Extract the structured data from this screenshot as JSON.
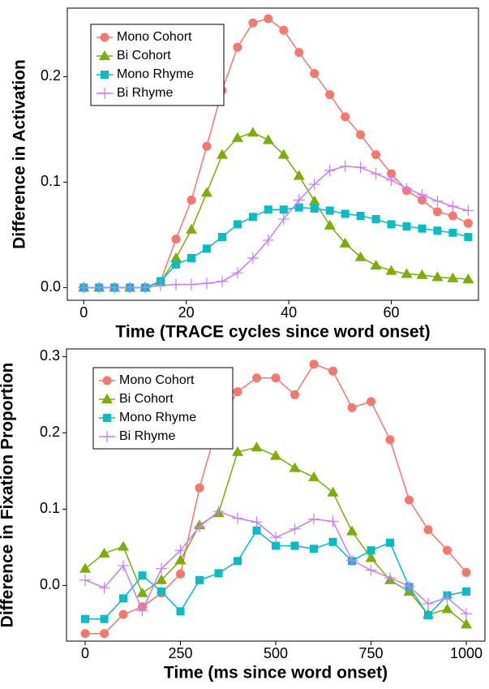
{
  "chart_data": [
    {
      "type": "line",
      "xlabel": "Time (TRACE cycles since word onset)",
      "ylabel": "Difference in Activation",
      "x": [
        0,
        3,
        6,
        9,
        12,
        15,
        18,
        21,
        24,
        27,
        30,
        33,
        36,
        39,
        42,
        45,
        48,
        51,
        54,
        57,
        60,
        63,
        66,
        69,
        72,
        75
      ],
      "xlim": [
        -3.2,
        77
      ],
      "xticks": [
        0,
        20,
        40,
        60
      ],
      "ylim": [
        -0.012,
        0.265
      ],
      "yticks": [
        {
          "value": 0,
          "label": "0.0"
        },
        0.1,
        0.2
      ],
      "legend": "top-left",
      "series": [
        {
          "name": "Mono Cohort",
          "color": "#F8766D",
          "marker": "circle",
          "values": [
            0,
            0,
            0,
            0,
            0,
            0.006,
            0.046,
            0.083,
            0.134,
            0.187,
            0.228,
            0.251,
            0.255,
            0.244,
            0.223,
            0.203,
            0.183,
            0.162,
            0.145,
            0.126,
            0.108,
            0.092,
            0.083,
            0.072,
            0.068,
            0.061
          ]
        },
        {
          "name": "Bi Cohort",
          "color": "#7CAE00",
          "marker": "triangle",
          "values": [
            0,
            0,
            0,
            0,
            0,
            0.005,
            0.028,
            0.055,
            0.09,
            0.126,
            0.142,
            0.147,
            0.14,
            0.126,
            0.106,
            0.082,
            0.059,
            0.042,
            0.029,
            0.021,
            0.016,
            0.013,
            0.012,
            0.01,
            0.009,
            0.008
          ]
        },
        {
          "name": "Mono Rhyme",
          "color": "#00BFC4",
          "marker": "square",
          "values": [
            0,
            0,
            0,
            0,
            0,
            0.006,
            0.022,
            0.028,
            0.037,
            0.048,
            0.06,
            0.067,
            0.074,
            0.074,
            0.076,
            0.075,
            0.073,
            0.07,
            0.068,
            0.065,
            0.06,
            0.058,
            0.056,
            0.054,
            0.052,
            0.048
          ]
        },
        {
          "name": "Bi Rhyme",
          "color": "#C77CFF",
          "marker": "plus",
          "values": [
            0,
            0,
            0,
            0,
            0,
            0.002,
            0.003,
            0.003,
            0.004,
            0.006,
            0.014,
            0.028,
            0.045,
            0.065,
            0.083,
            0.098,
            0.111,
            0.115,
            0.114,
            0.108,
            0.102,
            0.094,
            0.088,
            0.082,
            0.077,
            0.073
          ]
        }
      ]
    },
    {
      "type": "line",
      "xlabel": "Time (ms since word onset)",
      "ylabel": "Difference in Fixation Proportion",
      "x": [
        0,
        50,
        100,
        150,
        200,
        250,
        300,
        350,
        400,
        450,
        500,
        550,
        600,
        650,
        700,
        750,
        800,
        850,
        900,
        950,
        1000
      ],
      "xlim": [
        -49,
        1049
      ],
      "xticks": [
        0,
        250,
        500,
        750,
        1000
      ],
      "ylim": [
        -0.073,
        0.31
      ],
      "yticks": [
        {
          "value": 0,
          "label": "0.0"
        },
        0.1,
        0.2,
        0.3
      ],
      "legend": "top-left",
      "series": [
        {
          "name": "Mono Cohort",
          "color": "#F8766D",
          "marker": "circle",
          "values": [
            -0.063,
            -0.063,
            -0.038,
            -0.028,
            -0.01,
            0.015,
            0.128,
            0.215,
            0.254,
            0.272,
            0.272,
            0.25,
            0.29,
            0.281,
            0.233,
            0.241,
            0.191,
            0.112,
            0.073,
            0.046,
            0.017
          ]
        },
        {
          "name": "Bi Cohort",
          "color": "#7CAE00",
          "marker": "triangle",
          "values": [
            0.022,
            0.042,
            0.051,
            -0.01,
            0.007,
            0.033,
            0.079,
            0.095,
            0.175,
            0.181,
            0.17,
            0.154,
            0.142,
            0.122,
            0.071,
            0.036,
            0.007,
            -0.008,
            -0.038,
            -0.031,
            -0.051
          ]
        },
        {
          "name": "Mono Rhyme",
          "color": "#00BFC4",
          "marker": "square",
          "values": [
            -0.044,
            -0.044,
            -0.017,
            0.013,
            -0.008,
            -0.034,
            0.007,
            0.016,
            0.032,
            0.072,
            0.052,
            0.052,
            0.048,
            0.057,
            0.032,
            0.046,
            0.056,
            -0.002,
            -0.039,
            -0.013,
            -0.008
          ]
        },
        {
          "name": "Bi Rhyme",
          "color": "#C77CFF",
          "marker": "plus",
          "values": [
            0.007,
            -0.003,
            0.026,
            -0.033,
            0.022,
            0.046,
            0.077,
            0.097,
            0.088,
            0.083,
            0.063,
            0.074,
            0.087,
            0.084,
            0.033,
            0.02,
            0.01,
            -0.001,
            -0.024,
            -0.016,
            -0.037
          ]
        }
      ]
    }
  ]
}
